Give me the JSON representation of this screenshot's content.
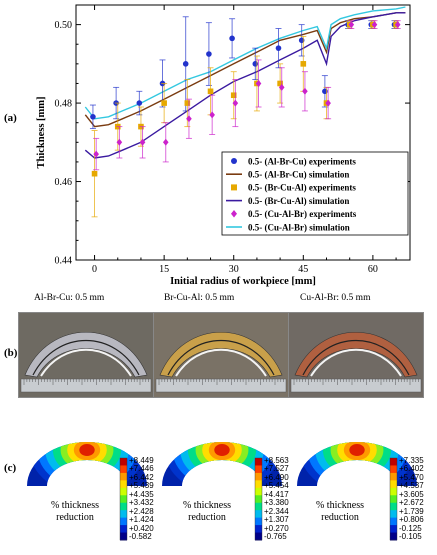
{
  "panel_labels": {
    "a": "(a)",
    "b": "(b)",
    "c": "(c)"
  },
  "chart_data": {
    "type": "line",
    "xlabel": "Initial radius of workpiece [mm]",
    "ylabel": "Thickness [mm]",
    "xlim": [
      -4,
      68
    ],
    "ylim": [
      0.44,
      0.505
    ],
    "xticks": [
      0,
      15,
      30,
      45,
      60
    ],
    "yticks": [
      0.44,
      0.46,
      0.48,
      0.5
    ],
    "grid": false,
    "legend_position": "bottom-right",
    "experiments": [
      {
        "name": "0.5- (Al-Br-Cu) experiments",
        "color": "#2233cc",
        "marker": "circle",
        "x": [
          0,
          5,
          10,
          15,
          20,
          25,
          30,
          35,
          40,
          45,
          50,
          55,
          60,
          65
        ],
        "y": [
          0.4765,
          0.48,
          0.48,
          0.485,
          0.49,
          0.4925,
          0.4965,
          0.49,
          0.494,
          0.496,
          0.483,
          0.5,
          0.5,
          0.5
        ],
        "err": [
          0.003,
          0.004,
          0.003,
          0.006,
          0.012,
          0.008,
          0.005,
          0.004,
          0.005,
          0.004,
          0.004,
          0.001,
          0.001,
          0.001
        ]
      },
      {
        "name": "0.5- (Br-Cu-Al) experiments",
        "color": "#e6a800",
        "marker": "square",
        "x": [
          0,
          5,
          10,
          15,
          20,
          25,
          30,
          35,
          40,
          45,
          50,
          55,
          60,
          65
        ],
        "y": [
          0.462,
          0.474,
          0.474,
          0.48,
          0.48,
          0.483,
          0.482,
          0.485,
          0.485,
          0.49,
          0.48,
          0.5,
          0.5,
          0.5
        ],
        "err": [
          0.011,
          0.006,
          0.005,
          0.005,
          0.006,
          0.006,
          0.006,
          0.007,
          0.005,
          0.007,
          0.004,
          0.001,
          0.001,
          0.001
        ]
      },
      {
        "name": "0.5- (Cu-Al-Br) experiments",
        "color": "#cc22cc",
        "marker": "diamond",
        "x": [
          0,
          5,
          10,
          15,
          20,
          25,
          30,
          35,
          40,
          45,
          50,
          55,
          60,
          65
        ],
        "y": [
          0.467,
          0.47,
          0.47,
          0.47,
          0.476,
          0.477,
          0.48,
          0.485,
          0.484,
          0.483,
          0.48,
          0.5,
          0.5,
          0.5
        ],
        "err": [
          0.004,
          0.004,
          0.004,
          0.005,
          0.005,
          0.005,
          0.006,
          0.006,
          0.005,
          0.005,
          0.004,
          0.001,
          0.001,
          0.001
        ]
      }
    ],
    "simulations": [
      {
        "name": "0.5- (Al-Br-Cu) simulation",
        "color": "#7a3b10",
        "x": [
          -2,
          0,
          3,
          6,
          10,
          15,
          20,
          25,
          30,
          35,
          40,
          45,
          48,
          50,
          51,
          53,
          56,
          60,
          65,
          67
        ],
        "y": [
          0.477,
          0.474,
          0.4745,
          0.476,
          0.478,
          0.481,
          0.484,
          0.487,
          0.49,
          0.493,
          0.496,
          0.4975,
          0.4985,
          0.493,
          0.499,
          0.5005,
          0.5015,
          0.502,
          0.503,
          0.503
        ]
      },
      {
        "name": "0.5- (Br-Cu-Al) simulation",
        "color": "#3a1aa0",
        "x": [
          -2,
          0,
          3,
          6,
          10,
          15,
          20,
          25,
          30,
          35,
          40,
          45,
          48,
          50,
          51,
          53,
          56,
          60,
          65,
          67
        ],
        "y": [
          0.468,
          0.466,
          0.4665,
          0.468,
          0.47,
          0.474,
          0.478,
          0.482,
          0.4855,
          0.488,
          0.491,
          0.494,
          0.496,
          0.49,
          0.497,
          0.4995,
          0.501,
          0.502,
          0.503,
          0.503
        ]
      },
      {
        "name": "0.5- (Cu-Al-Br) simulation",
        "color": "#33c8e0",
        "x": [
          -2,
          0,
          3,
          6,
          10,
          15,
          20,
          25,
          30,
          35,
          40,
          45,
          48,
          50,
          51,
          53,
          56,
          60,
          65,
          67
        ],
        "y": [
          0.479,
          0.476,
          0.4765,
          0.478,
          0.48,
          0.483,
          0.486,
          0.488,
          0.491,
          0.494,
          0.4965,
          0.4985,
          0.4995,
          0.494,
          0.5,
          0.5015,
          0.5025,
          0.5035,
          0.504,
          0.5045
        ]
      }
    ],
    "legend_order": [
      {
        "kind": "exp",
        "index": 0
      },
      {
        "kind": "sim",
        "index": 0
      },
      {
        "kind": "exp",
        "index": 1
      },
      {
        "kind": "sim",
        "index": 1
      },
      {
        "kind": "exp",
        "index": 2
      },
      {
        "kind": "sim",
        "index": 2
      }
    ]
  },
  "photos": [
    {
      "label": "Al-Br-Cu: 0.5 mm",
      "tone": "#b8b8c0",
      "icon": "specimen-photo-silver"
    },
    {
      "label": "Br-Cu-Al: 0.5 mm",
      "tone": "#c9a04a",
      "icon": "specimen-photo-gold"
    },
    {
      "label": "Cu-Al-Br: 0.5 mm",
      "tone": "#b06040",
      "icon": "specimen-photo-copper"
    }
  ],
  "contours": [
    {
      "title_line1": "% thickness",
      "title_line2": "reduction",
      "ticks": [
        "+8.449",
        "+7.446",
        "+6.442",
        "+5.439",
        "+4.435",
        "+3.432",
        "+2.428",
        "+1.424",
        "+0.420",
        "-0.582"
      ]
    },
    {
      "title_line1": "% thickness",
      "title_line2": "reduction",
      "ticks": [
        "+8.563",
        "+7.527",
        "+6.490",
        "+5.454",
        "+4.417",
        "+3.380",
        "+2.344",
        "+1.307",
        "+0.270",
        "-0.765"
      ]
    },
    {
      "title_line1": "% thickness",
      "title_line2": "reduction",
      "ticks": [
        "+7.335",
        "+6.402",
        "+5.470",
        "+4.537",
        "+3.605",
        "+2.672",
        "+1.739",
        "+0.806",
        "-0.125",
        "-0.105"
      ]
    }
  ],
  "colorbar_colors": [
    "#c00000",
    "#ff4000",
    "#ff9900",
    "#ffdd00",
    "#ccff00",
    "#55ee22",
    "#00dd88",
    "#00bbee",
    "#0077ff",
    "#0022cc",
    "#000088"
  ]
}
